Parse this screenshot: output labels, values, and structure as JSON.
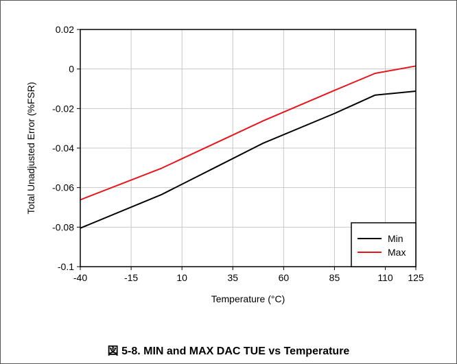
{
  "caption": "図 5-8. MIN and MAX DAC TUE vs Temperature",
  "chart_data": {
    "type": "line",
    "title": "",
    "xlabel": "Temperature (°C)",
    "ylabel": "Total Unadjusted Error (%FSR)",
    "xlim": [
      -40,
      125
    ],
    "ylim": [
      -0.1,
      0.02
    ],
    "xticks": [
      -40,
      -15,
      10,
      35,
      60,
      85,
      110,
      125
    ],
    "xtick_labels": [
      "-40",
      "-15",
      "10",
      "35",
      "60",
      "85",
      "110",
      "125"
    ],
    "yticks": [
      0.02,
      0,
      -0.02,
      -0.04,
      -0.06,
      -0.08,
      -0.1
    ],
    "ytick_labels": [
      "0.02",
      "0",
      "-0.02",
      "-0.04",
      "-0.06",
      "-0.08",
      "-0.1"
    ],
    "grid": true,
    "legend_position": "bottom-right",
    "series": [
      {
        "name": "Min",
        "color": "#000000",
        "x": [
          -40,
          0,
          25,
          50,
          85,
          105,
          125
        ],
        "y": [
          -0.0805,
          -0.0635,
          -0.0505,
          -0.0375,
          -0.0225,
          -0.0132,
          -0.0112
        ]
      },
      {
        "name": "Max",
        "color": "#e8141c",
        "x": [
          -40,
          0,
          25,
          50,
          85,
          105,
          125
        ],
        "y": [
          -0.0662,
          -0.0502,
          -0.0382,
          -0.0262,
          -0.0108,
          -0.0022,
          0.0015
        ]
      }
    ]
  }
}
